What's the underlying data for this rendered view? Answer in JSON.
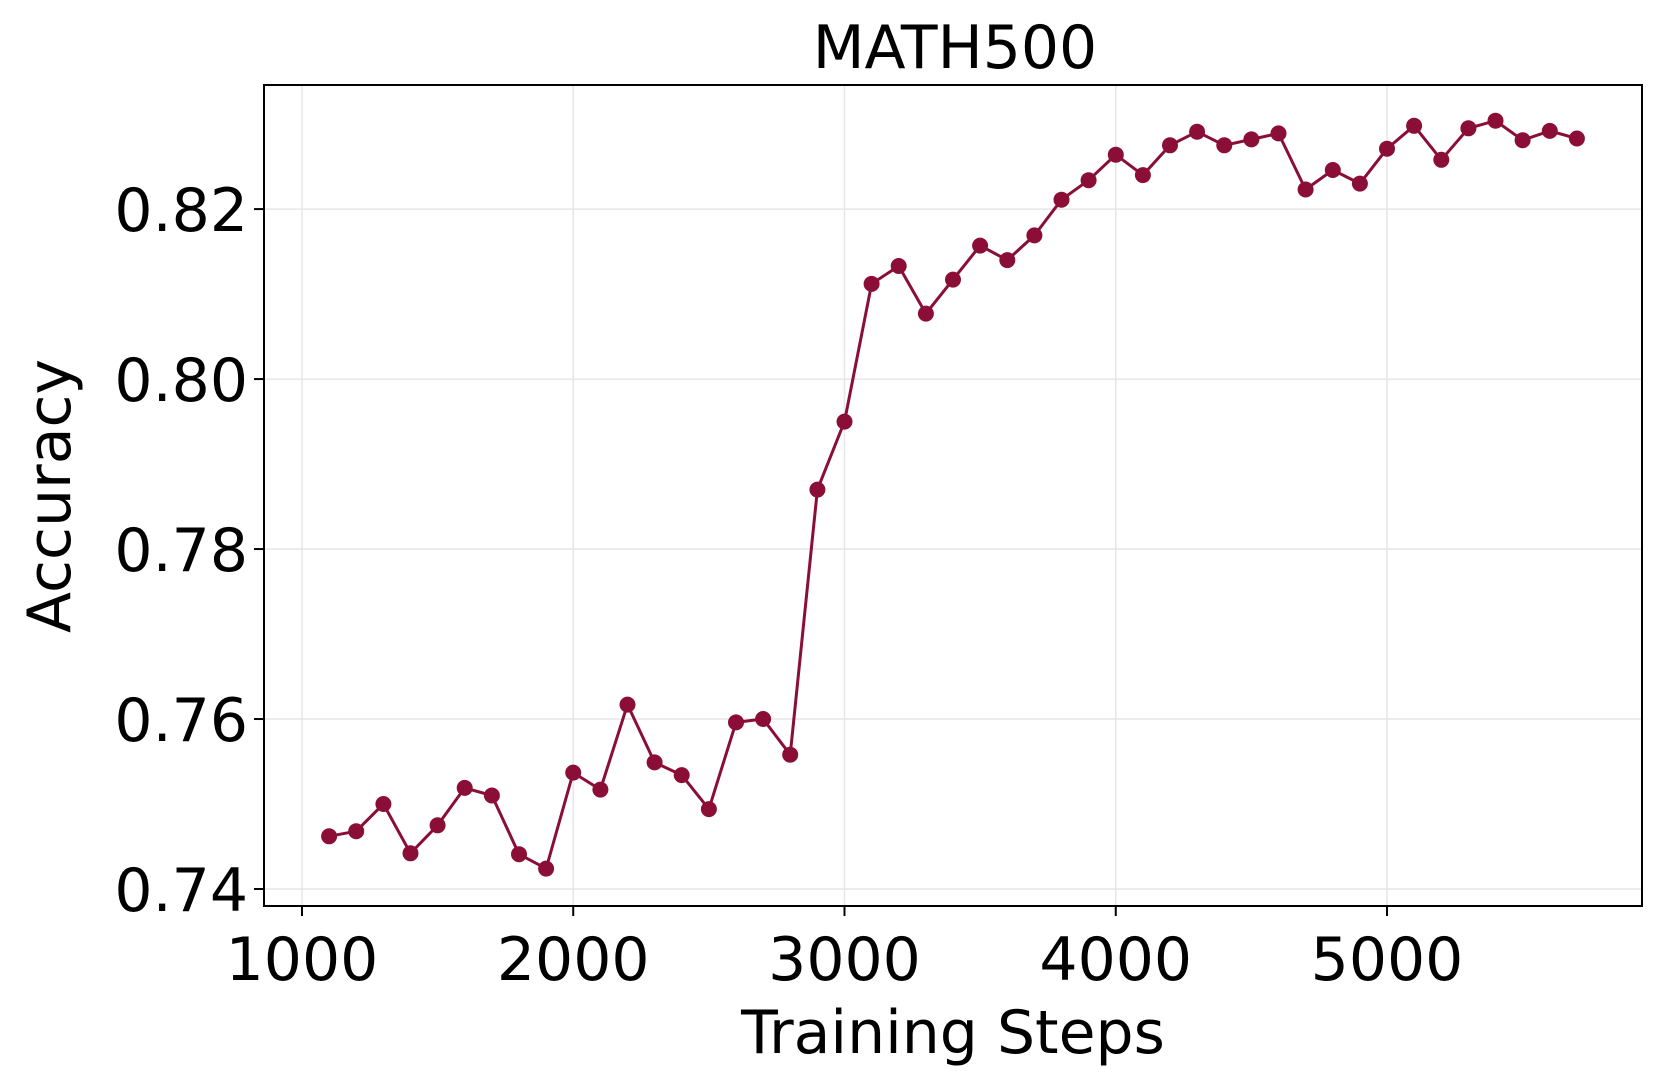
{
  "chart_data": {
    "type": "line",
    "title": "MATH500",
    "xlabel": "Training Steps",
    "ylabel": "Accuracy",
    "xlim": [
      860,
      5940
    ],
    "ylim": [
      0.738,
      0.8346
    ],
    "xticks": [
      1000,
      2000,
      3000,
      4000,
      5000
    ],
    "xtick_labels": [
      "1000",
      "2000",
      "3000",
      "4000",
      "5000"
    ],
    "yticks": [
      0.74,
      0.76,
      0.78,
      0.8,
      0.82
    ],
    "ytick_labels": [
      "0.74",
      "0.76",
      "0.78",
      "0.80",
      "0.82"
    ],
    "grid": true,
    "legend": "none",
    "series": [
      {
        "color": "#8b0e37",
        "marker": "circle",
        "x": [
          1100,
          1200,
          1300,
          1400,
          1500,
          1600,
          1700,
          1800,
          1900,
          2000,
          2100,
          2200,
          2300,
          2400,
          2500,
          2600,
          2700,
          2800,
          2900,
          3000,
          3100,
          3200,
          3300,
          3400,
          3500,
          3600,
          3700,
          3800,
          3900,
          4000,
          4100,
          4200,
          4300,
          4400,
          4500,
          4600,
          4700,
          4800,
          4900,
          5000,
          5100,
          5200,
          5300,
          5400,
          5500,
          5600,
          5700
        ],
        "values": [
          0.7462,
          0.7468,
          0.75,
          0.7442,
          0.7475,
          0.7519,
          0.751,
          0.7441,
          0.7424,
          0.7537,
          0.7517,
          0.7617,
          0.7549,
          0.7534,
          0.7494,
          0.7596,
          0.76,
          0.7558,
          0.787,
          0.795,
          0.8112,
          0.8133,
          0.8077,
          0.8117,
          0.8157,
          0.814,
          0.8169,
          0.8211,
          0.8234,
          0.8264,
          0.824,
          0.8275,
          0.8291,
          0.8275,
          0.8282,
          0.8289,
          0.8223,
          0.8246,
          0.823,
          0.8271,
          0.8298,
          0.8258,
          0.8295,
          0.8304,
          0.8281,
          0.8292,
          0.8283
        ]
      }
    ]
  }
}
